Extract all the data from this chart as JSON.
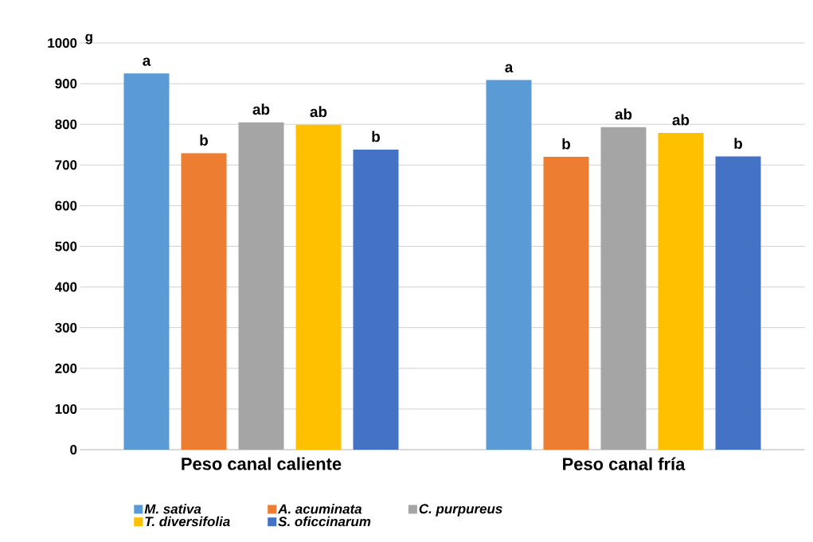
{
  "chart_data": {
    "type": "bar",
    "ylabel": "g",
    "categories": [
      "Peso canal caliente",
      "Peso canal fría"
    ],
    "series": [
      {
        "name": "M. sativa",
        "color": "#5b9bd5",
        "values": [
          925,
          909
        ],
        "value_labels": [
          "a",
          "a"
        ]
      },
      {
        "name": "A. acuminata",
        "color": "#ed7d31",
        "values": [
          729,
          720
        ],
        "value_labels": [
          "b",
          "b"
        ]
      },
      {
        "name": "C. purpureus",
        "color": "#a5a5a5",
        "values": [
          805,
          793
        ],
        "value_labels": [
          "ab",
          "ab"
        ]
      },
      {
        "name": "T. diversifolia",
        "color": "#ffc000",
        "values": [
          799,
          779
        ],
        "value_labels": [
          "ab",
          "ab"
        ]
      },
      {
        "name": "S. oficcinarum",
        "color": "#4472c4",
        "values": [
          738,
          721
        ],
        "value_labels": [
          "b",
          "b"
        ]
      }
    ],
    "ylim": [
      0,
      1000
    ],
    "yticks": [
      0,
      100,
      200,
      300,
      400,
      500,
      600,
      700,
      800,
      900,
      1000
    ],
    "grid": "y",
    "legend": "bottom"
  }
}
